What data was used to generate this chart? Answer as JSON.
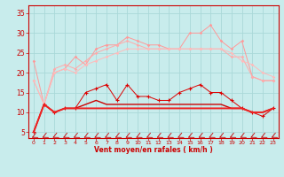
{
  "x": [
    0,
    1,
    2,
    3,
    4,
    5,
    6,
    7,
    8,
    9,
    10,
    11,
    12,
    13,
    14,
    15,
    16,
    17,
    18,
    19,
    20,
    21,
    22,
    23
  ],
  "line1": [
    23,
    12,
    20,
    21,
    24,
    22,
    26,
    27,
    27,
    29,
    28,
    27,
    27,
    26,
    26,
    30,
    30,
    32,
    28,
    26,
    28,
    19,
    18,
    18
  ],
  "line2": [
    18,
    12,
    21,
    22,
    21,
    23,
    25,
    26,
    27,
    28,
    27,
    26,
    26,
    26,
    26,
    26,
    26,
    26,
    26,
    24,
    24,
    19,
    18,
    18
  ],
  "line3": [
    18,
    12,
    20,
    21,
    20,
    22,
    23,
    24,
    25,
    26,
    26,
    26,
    26,
    26,
    26,
    26,
    26,
    26,
    26,
    25,
    23,
    22,
    20,
    19
  ],
  "line4": [
    5,
    12,
    10,
    11,
    11,
    15,
    16,
    17,
    13,
    17,
    14,
    14,
    13,
    13,
    15,
    16,
    17,
    15,
    15,
    13,
    11,
    10,
    9,
    11
  ],
  "line5": [
    5,
    12,
    10,
    11,
    11,
    12,
    13,
    12,
    12,
    12,
    12,
    12,
    12,
    12,
    12,
    12,
    12,
    12,
    12,
    11,
    11,
    10,
    10,
    11
  ],
  "line6": [
    5,
    12,
    10,
    11,
    11,
    11,
    11,
    11,
    11,
    11,
    11,
    11,
    11,
    11,
    11,
    11,
    11,
    11,
    11,
    11,
    11,
    10,
    10,
    11
  ],
  "bg_color": "#c8ecec",
  "grid_color": "#aad8d8",
  "line1_color": "#ff9999",
  "line2_color": "#ffaaaa",
  "line3_color": "#ffbbbb",
  "line4_color": "#dd0000",
  "line5_color": "#cc0000",
  "line6_color": "#ee2222",
  "xlabel": "Vent moyen/en rafales ( km/h )",
  "ylim": [
    3.5,
    37
  ],
  "xlim": [
    -0.5,
    23.5
  ],
  "yticks": [
    5,
    10,
    15,
    20,
    25,
    30,
    35
  ],
  "xticks": [
    0,
    1,
    2,
    3,
    4,
    5,
    6,
    7,
    8,
    9,
    10,
    11,
    12,
    13,
    14,
    15,
    16,
    17,
    18,
    19,
    20,
    21,
    22,
    23
  ]
}
